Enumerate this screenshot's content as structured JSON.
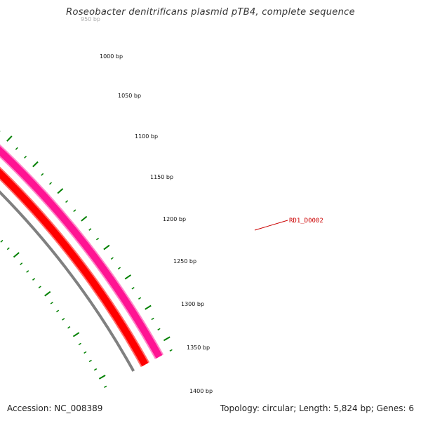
{
  "title": "Roseobacter denitrificans plasmid pTB4, complete sequence",
  "accession": {
    "label": "Accession:",
    "value": "NC_008389"
  },
  "topology_text": "Topology: circular; Length: 5,824 bp; Genes: 6",
  "colors": {
    "backbone": "#808080",
    "forward_cds": "#ff0000",
    "forward_cds_light": "#ff7070",
    "reverse_cds": "#ff1493",
    "reverse_cds_light": "#ff88c8",
    "ticks": "#008000",
    "gene_label": "#cc0000"
  },
  "ticks": {
    "labels": [
      "950 bp",
      "1000 bp",
      "1050 bp",
      "1100 bp",
      "1150 bp",
      "1200 bp",
      "1250 bp",
      "1300 bp",
      "1350 bp",
      "1400 bp"
    ]
  },
  "gene_labels": [
    "RD1_D0002"
  ]
}
